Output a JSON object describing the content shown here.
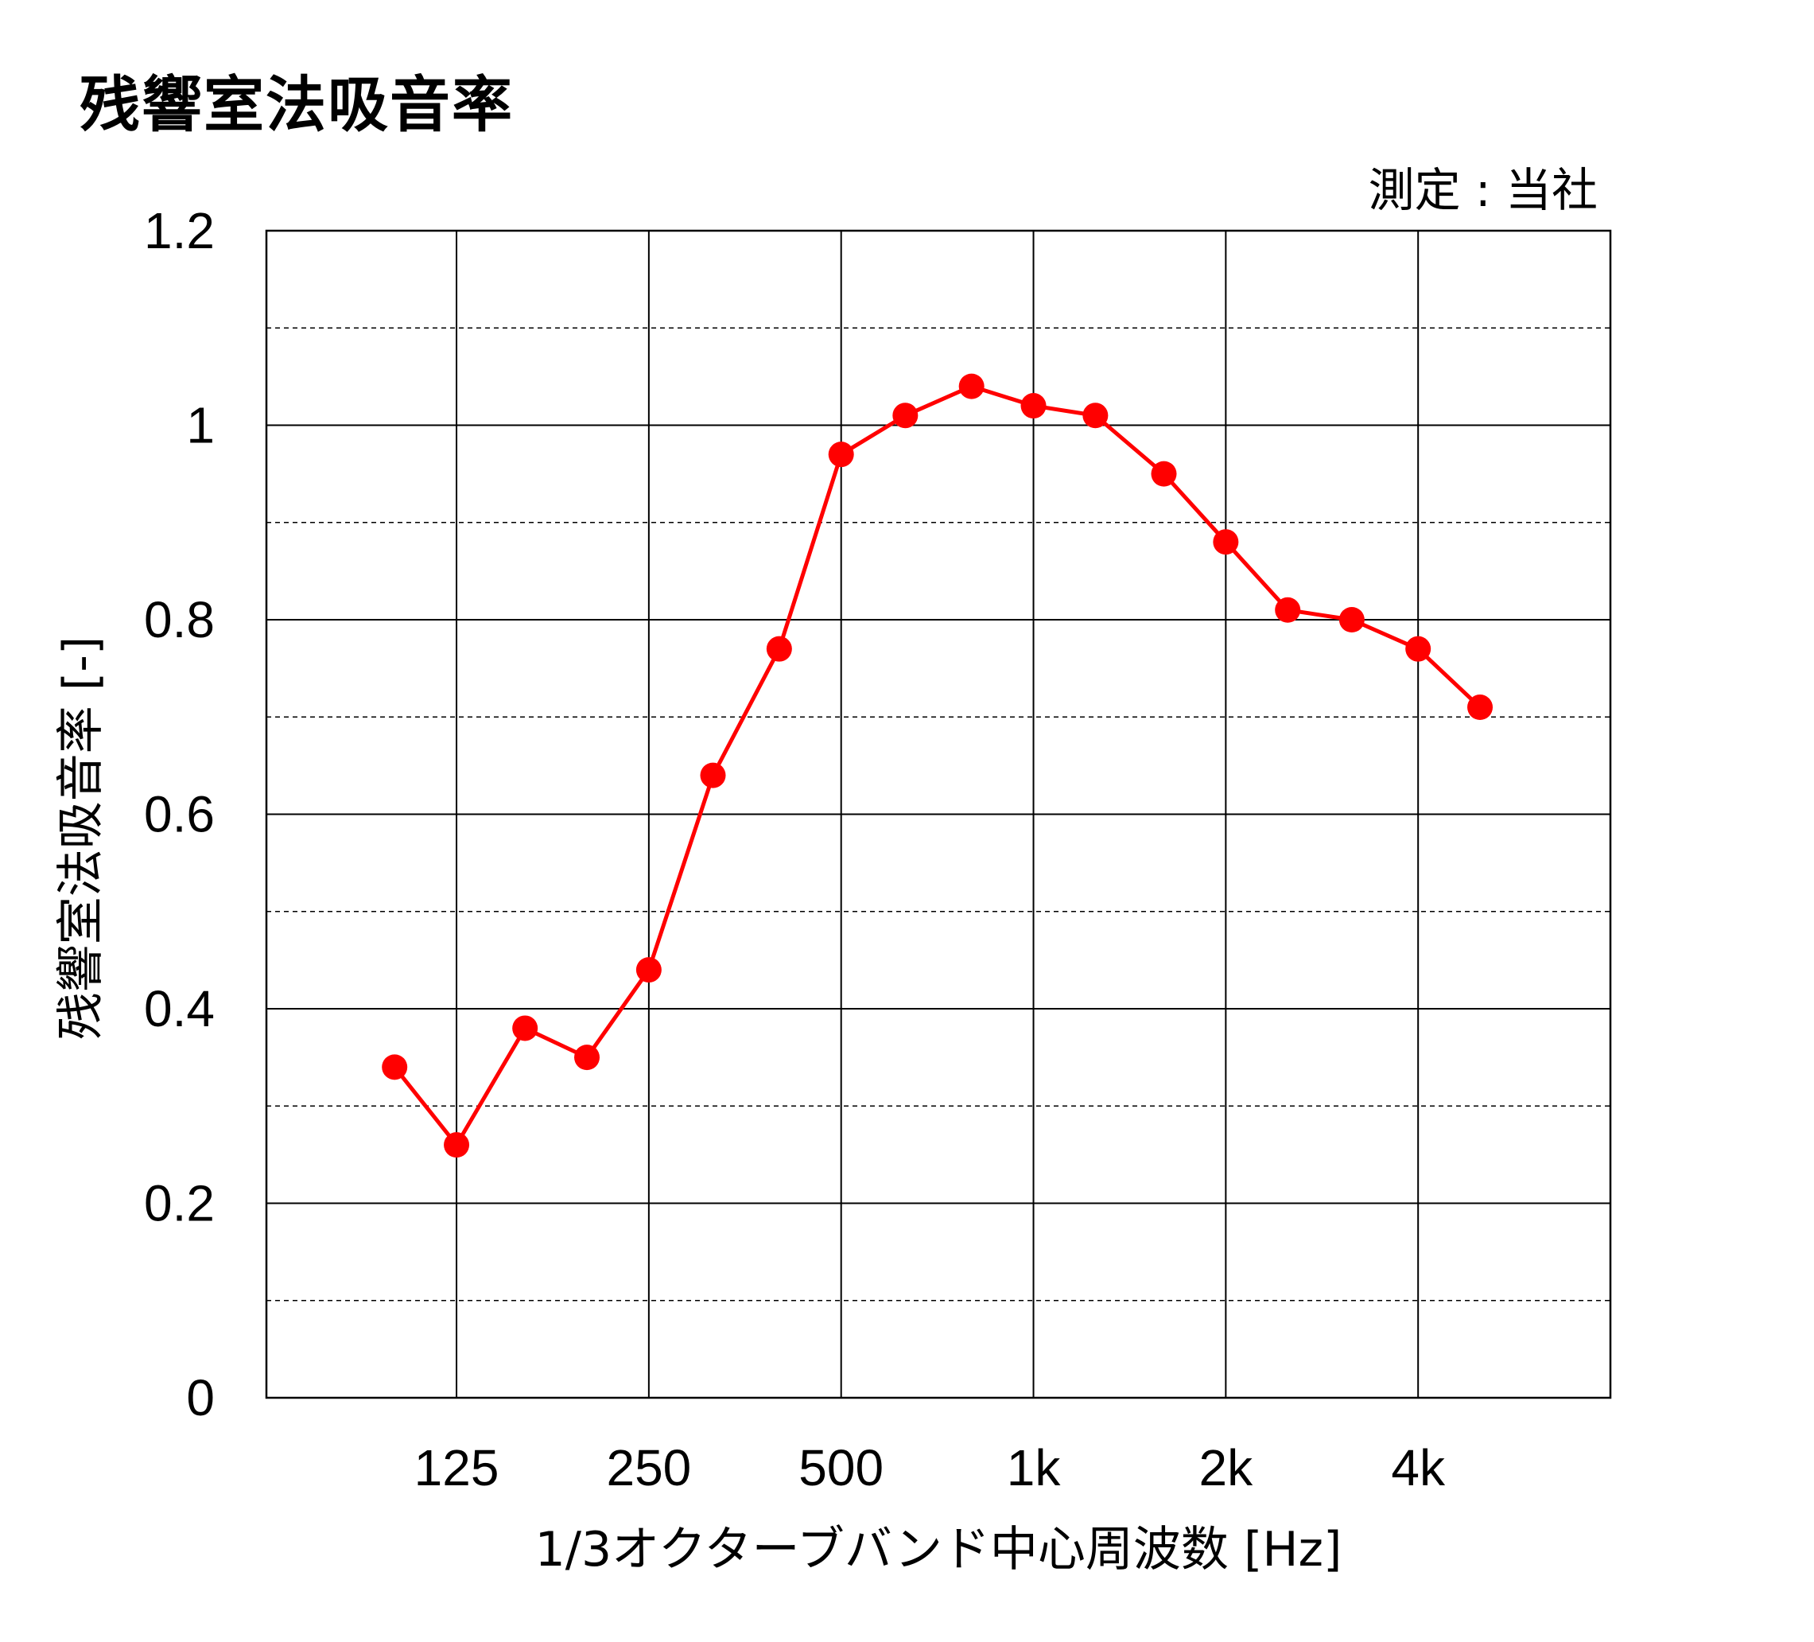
{
  "chart_data": {
    "type": "line",
    "title": "残響室法吸音率",
    "note": "測定 : 当社",
    "xlabel": "1/3オクターブバンド中心周波数 [Hz]",
    "ylabel": "残響室法吸音率 [-]",
    "x_scale": "log",
    "x": [
      100,
      125,
      160,
      200,
      250,
      315,
      400,
      500,
      630,
      800,
      1000,
      1250,
      1600,
      2000,
      2500,
      3150,
      4000,
      5000
    ],
    "x_ticks": [
      125,
      250,
      500,
      1000,
      2000,
      4000
    ],
    "x_tick_labels": [
      "125",
      "250",
      "500",
      "1k",
      "2k",
      "4k"
    ],
    "xlim": [
      63,
      8000
    ],
    "ylim": [
      0,
      1.2
    ],
    "y_ticks": [
      0,
      0.2,
      0.4,
      0.6,
      0.8,
      1,
      1.2
    ],
    "y_tick_labels": [
      "0",
      "0.2",
      "0.4",
      "0.6",
      "0.8",
      "1",
      "1.2"
    ],
    "y_minor_ticks": [
      0.1,
      0.3,
      0.5,
      0.7,
      0.9,
      1.1
    ],
    "grid": true,
    "legend": "none",
    "series": [
      {
        "values": [
          0.34,
          0.26,
          0.38,
          0.35,
          0.44,
          0.64,
          0.77,
          0.97,
          1.01,
          1.04,
          1.02,
          1.01,
          0.95,
          0.88,
          0.81,
          0.8,
          0.77,
          0.71
        ],
        "color": "#ff0000"
      }
    ]
  }
}
